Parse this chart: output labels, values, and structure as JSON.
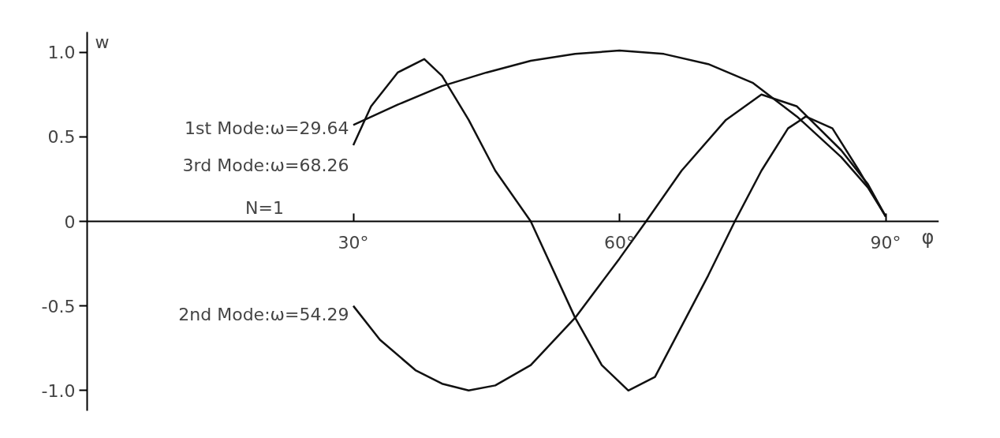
{
  "chart_data": {
    "type": "line",
    "xlabel": "φ",
    "ylabel": "w",
    "xlim": [
      0,
      96
    ],
    "ylim": [
      -1.12,
      1.12
    ],
    "xticks": [
      {
        "value": 30,
        "label": "30°"
      },
      {
        "value": 60,
        "label": "60°"
      },
      {
        "value": 90,
        "label": "90°"
      }
    ],
    "yticks": [
      {
        "value": -1.0,
        "label": "-1.0"
      },
      {
        "value": -0.5,
        "label": "-0.5"
      },
      0,
      {
        "value": 0.5,
        "label": "0.5"
      },
      {
        "value": 1.0,
        "label": "1.0"
      }
    ],
    "grid": false,
    "marker": "none",
    "line_style": "solid",
    "series": [
      {
        "color": "#111111",
        "x": [
          30,
          35,
          40,
          45,
          50,
          55,
          60,
          65,
          70,
          75,
          80,
          85,
          88,
          90
        ],
        "values": [
          0.57,
          0.69,
          0.8,
          0.88,
          0.95,
          0.99,
          1.01,
          0.99,
          0.93,
          0.82,
          0.62,
          0.38,
          0.2,
          0.03
        ]
      },
      {
        "color": "#111111",
        "x": [
          30,
          33,
          37,
          40,
          43,
          46,
          50,
          55,
          60,
          63,
          67,
          72,
          76,
          80,
          85,
          88,
          90
        ],
        "values": [
          -0.5,
          -0.7,
          -0.88,
          -0.96,
          -1.0,
          -0.97,
          -0.85,
          -0.57,
          -0.22,
          0.0,
          0.3,
          0.6,
          0.75,
          0.68,
          0.42,
          0.22,
          0.03
        ]
      },
      {
        "color": "#111111",
        "x": [
          30,
          32,
          35,
          38,
          40,
          43,
          46,
          50,
          55,
          58,
          61,
          64,
          67,
          70,
          73,
          76,
          79,
          81,
          84,
          87,
          90
        ],
        "values": [
          0.45,
          0.68,
          0.88,
          0.96,
          0.86,
          0.6,
          0.3,
          0.0,
          -0.57,
          -0.85,
          -1.0,
          -0.92,
          -0.62,
          -0.32,
          0.0,
          0.3,
          0.55,
          0.62,
          0.55,
          0.3,
          0.03
        ]
      }
    ],
    "annotations": [
      "1st Mode:ω=29.64",
      "3rd Mode:ω=68.26",
      "N=1",
      "2nd Mode:ω=54.29"
    ]
  }
}
